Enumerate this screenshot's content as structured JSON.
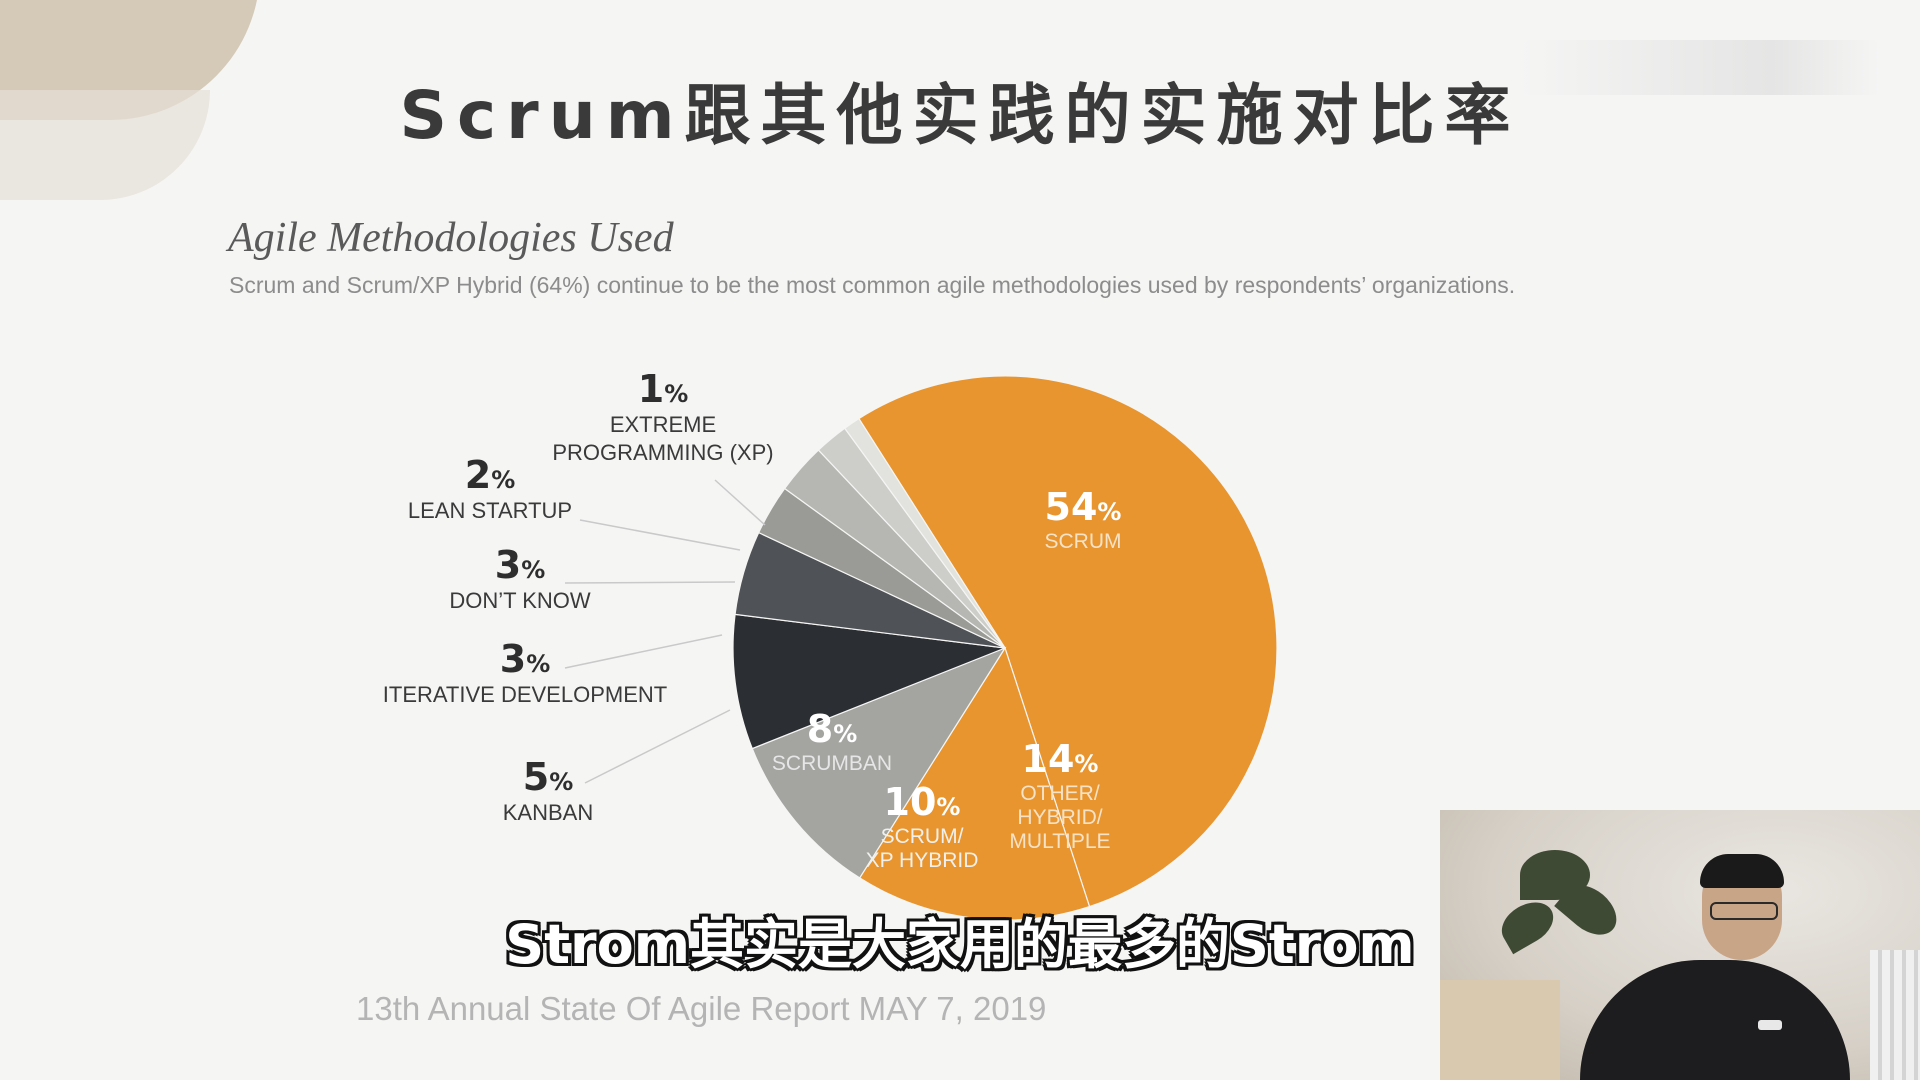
{
  "slide": {
    "title": "Scrum跟其他实践的实施对比率",
    "report_heading": "Agile Methodologies Used",
    "report_subtitle": "Scrum and Scrum/XP Hybrid (64%) continue to be the most common agile methodologies used by respondents’ organizations.",
    "source": "13th Annual State Of Agile Report MAY 7, 2019"
  },
  "caption": "Strom其实是大家用的最多的Strom",
  "chart_data": {
    "type": "pie",
    "title": "Agile Methodologies Used",
    "slices": [
      {
        "value": 54,
        "pct": "54",
        "label": [
          "SCRUM"
        ],
        "color": "#e8952f",
        "label_placement": "inside"
      },
      {
        "value": 14,
        "pct": "14",
        "label": [
          "OTHER/",
          "HYBRID/",
          "MULTIPLE"
        ],
        "color": "#e8952f",
        "label_placement": "inside"
      },
      {
        "value": 10,
        "pct": "10",
        "label": [
          "SCRUM/",
          "XP HYBRID"
        ],
        "color": "#a4a4a0",
        "label_placement": "inside"
      },
      {
        "value": 8,
        "pct": "8",
        "label": [
          "SCRUMBAN"
        ],
        "color": "#2b2e33",
        "label_placement": "inside"
      },
      {
        "value": 5,
        "pct": "5",
        "label": [
          "KANBAN"
        ],
        "color": "#4f5256",
        "label_placement": "outside"
      },
      {
        "value": 3,
        "pct": "3",
        "label": [
          "ITERATIVE DEVELOPMENT"
        ],
        "color": "#9a9a96",
        "label_placement": "outside"
      },
      {
        "value": 3,
        "pct": "3",
        "label": [
          "DON’T KNOW"
        ],
        "color": "#b6b6b2",
        "label_placement": "outside"
      },
      {
        "value": 2,
        "pct": "2",
        "label": [
          "LEAN STARTUP"
        ],
        "color": "#cdcdc9",
        "label_placement": "outside"
      },
      {
        "value": 1,
        "pct": "1",
        "label": [
          "EXTREME",
          "PROGRAMMING (XP)"
        ],
        "color": "#e2e2de",
        "label_placement": "outside"
      }
    ],
    "percent_suffix": "%"
  }
}
